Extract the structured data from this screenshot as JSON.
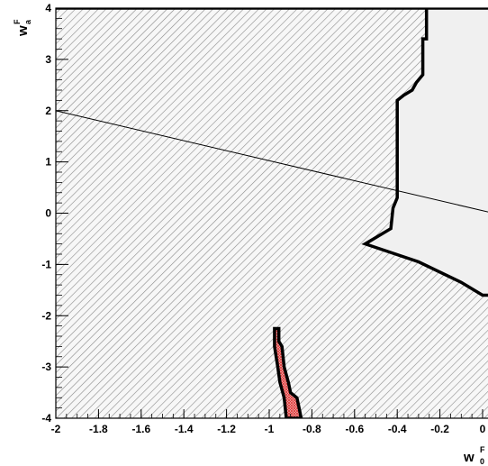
{
  "chart_data": {
    "type": "area",
    "xlim": [
      -2,
      0.05
    ],
    "ylim": [
      -4,
      4
    ],
    "x_ticks": [
      "-2",
      "-1.8",
      "-1.6",
      "-1.4",
      "-1.2",
      "-1",
      "-0.8",
      "-0.6",
      "-0.4",
      "-0.2",
      "0"
    ],
    "y_ticks": [
      "-4",
      "-3",
      "-2",
      "-1",
      "0",
      "1",
      "2",
      "3",
      "4"
    ],
    "xlabel": {
      "main": "w",
      "sup": "F",
      "sub": "0"
    },
    "ylabel": {
      "main": "w",
      "sup": "F",
      "sub": "a"
    },
    "regions": [
      {
        "fill": "hatch",
        "color": "#555555",
        "outline": [
          [
            -2,
            4
          ],
          [
            -0.263,
            4
          ],
          [
            -0.263,
            3.4
          ],
          [
            -0.28,
            3.4
          ],
          [
            -0.28,
            2.7
          ],
          [
            -0.31,
            2.55
          ],
          [
            -0.33,
            2.4
          ],
          [
            -0.37,
            2.3
          ],
          [
            -0.4,
            2.2
          ],
          [
            -0.4,
            1.0
          ],
          [
            -0.4,
            0.3
          ],
          [
            -0.42,
            0.1
          ],
          [
            -0.43,
            -0.3
          ],
          [
            -0.47,
            -0.4
          ],
          [
            -0.55,
            -0.6
          ],
          [
            -0.3,
            -0.95
          ],
          [
            -0.1,
            -1.35
          ],
          [
            0.0,
            -1.6
          ],
          [
            0.05,
            -1.6
          ],
          [
            0.05,
            -4
          ],
          [
            -2,
            -4
          ]
        ]
      },
      {
        "fill": "light",
        "color": "#f0f0f0",
        "outline": [
          [
            -0.263,
            4
          ],
          [
            0.05,
            4
          ],
          [
            0.05,
            -1.6
          ],
          [
            0.0,
            -1.6
          ],
          [
            -0.1,
            -1.35
          ],
          [
            -0.3,
            -0.95
          ],
          [
            -0.55,
            -0.6
          ],
          [
            -0.47,
            -0.4
          ],
          [
            -0.43,
            -0.3
          ],
          [
            -0.42,
            0.1
          ],
          [
            -0.4,
            0.3
          ],
          [
            -0.4,
            2.2
          ],
          [
            -0.37,
            2.3
          ],
          [
            -0.33,
            2.4
          ],
          [
            -0.31,
            2.55
          ],
          [
            -0.28,
            2.7
          ],
          [
            -0.28,
            3.4
          ],
          [
            -0.263,
            3.4
          ]
        ]
      },
      {
        "fill": "red-hatch",
        "color": "#e03030",
        "outline": [
          [
            -0.975,
            -2.25
          ],
          [
            -0.955,
            -2.25
          ],
          [
            -0.955,
            -2.5
          ],
          [
            -0.94,
            -2.6
          ],
          [
            -0.93,
            -3.0
          ],
          [
            -0.91,
            -3.3
          ],
          [
            -0.9,
            -3.5
          ],
          [
            -0.87,
            -3.6
          ],
          [
            -0.86,
            -3.8
          ],
          [
            -0.85,
            -4
          ],
          [
            -0.92,
            -4
          ],
          [
            -0.93,
            -3.6
          ],
          [
            -0.95,
            -3.3
          ],
          [
            -0.96,
            -3.0
          ],
          [
            -0.975,
            -2.6
          ]
        ]
      }
    ],
    "lines": [
      {
        "points": [
          [
            -2,
            2.0
          ],
          [
            0.05,
            -0.0
          ]
        ]
      }
    ]
  }
}
